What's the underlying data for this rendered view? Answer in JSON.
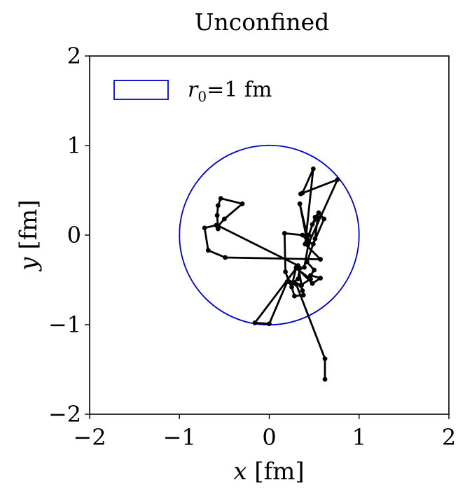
{
  "chart_data": {
    "type": "line",
    "title": "Unconfined",
    "xlabel": "x [fm]",
    "ylabel": "y [fm]",
    "xlim": [
      -2,
      2
    ],
    "ylim": [
      -2,
      2
    ],
    "xticks": [
      "−2",
      "−1",
      "0",
      "1",
      "2"
    ],
    "yticks": [
      "−2",
      "−1",
      "0",
      "1",
      "2"
    ],
    "grid": false,
    "legend": {
      "position": "top-left",
      "entries": [
        {
          "label": "r0=1 fm",
          "label_base": "r",
          "label_sub": "0",
          "label_rest": "=1 fm"
        }
      ]
    },
    "circle": {
      "center": [
        0,
        0
      ],
      "radius": 1,
      "color": "#0000cc"
    },
    "series": [
      {
        "color": "#000000",
        "points": [
          [
            0.62,
            -1.61
          ],
          [
            0.62,
            -1.38
          ],
          [
            0.3,
            -0.55
          ],
          [
            0.2,
            -0.52
          ],
          [
            0.0,
            -0.99
          ],
          [
            -0.16,
            -0.98
          ],
          [
            0.3,
            -0.37
          ],
          [
            0.46,
            -0.49
          ],
          [
            0.35,
            -0.56
          ],
          [
            0.37,
            -0.62
          ],
          [
            0.38,
            -0.67
          ],
          [
            0.28,
            -0.68
          ],
          [
            0.25,
            -0.58
          ],
          [
            0.22,
            -0.52
          ],
          [
            0.18,
            -0.41
          ],
          [
            0.17,
            0.02
          ],
          [
            0.37,
            0.0
          ],
          [
            0.42,
            -0.06
          ],
          [
            0.51,
            0.2
          ],
          [
            0.55,
            0.25
          ],
          [
            0.61,
            0.18
          ],
          [
            0.49,
            -0.1
          ],
          [
            0.44,
            -0.08
          ],
          [
            0.39,
            -0.36
          ],
          [
            0.34,
            -0.37
          ],
          [
            0.32,
            -0.49
          ],
          [
            0.26,
            -0.53
          ],
          [
            0.3,
            -0.36
          ],
          [
            0.48,
            -0.54
          ],
          [
            0.57,
            -0.48
          ],
          [
            0.46,
            -0.45
          ],
          [
            0.5,
            -0.39
          ],
          [
            0.42,
            -0.3
          ],
          [
            0.51,
            -0.04
          ],
          [
            0.54,
            0.2
          ],
          [
            0.48,
            0.12
          ],
          [
            0.44,
            0.0
          ],
          [
            0.43,
            -0.08
          ],
          [
            0.42,
            0.0
          ],
          [
            0.34,
            0.35
          ],
          [
            0.43,
            -0.11
          ],
          [
            0.76,
            0.62
          ],
          [
            0.35,
            0.46
          ],
          [
            0.37,
            0.47
          ],
          [
            0.49,
            0.74
          ],
          [
            0.4,
            -0.1
          ],
          [
            0.57,
            -0.27
          ],
          [
            -0.49,
            -0.25
          ],
          [
            -0.68,
            -0.17
          ],
          [
            -0.72,
            0.08
          ],
          [
            -0.59,
            0.11
          ],
          [
            -0.57,
            0.07
          ],
          [
            -0.58,
            0.22
          ],
          [
            -0.57,
            0.33
          ],
          [
            -0.54,
            0.41
          ],
          [
            -0.3,
            0.35
          ],
          [
            -0.5,
            0.18
          ],
          [
            -0.57,
            0.1
          ],
          [
            -0.58,
            0.11
          ],
          [
            0.32,
            -0.34
          ],
          [
            0.36,
            -0.56
          ],
          [
            0.28,
            -0.53
          ]
        ]
      }
    ]
  }
}
